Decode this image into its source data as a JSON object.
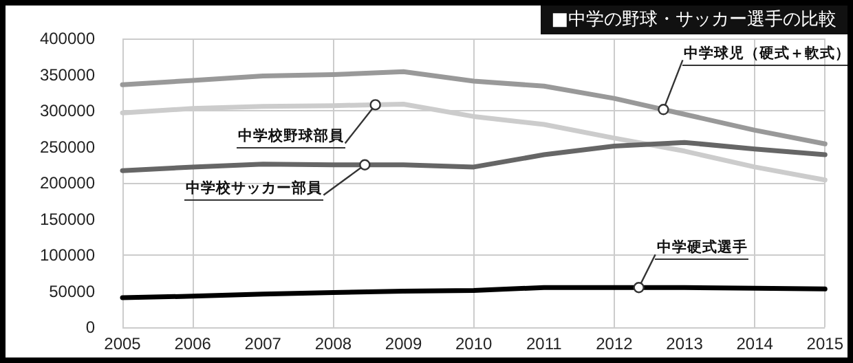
{
  "chart_data": {
    "type": "line",
    "title": "■中学の野球・サッカー選手の比較",
    "x": [
      2005,
      2006,
      2007,
      2008,
      2009,
      2010,
      2011,
      2012,
      2013,
      2014,
      2015
    ],
    "series": [
      {
        "name": "中学球児（硬式＋軟式）",
        "color": "#999999",
        "values": [
          336000,
          342000,
          348000,
          350000,
          354000,
          341000,
          334000,
          317000,
          295000,
          273000,
          254000
        ]
      },
      {
        "name": "中学校野球部員",
        "color": "#cccccc",
        "values": [
          297000,
          303000,
          306000,
          307000,
          309000,
          292000,
          281000,
          262000,
          244000,
          222000,
          204000
        ]
      },
      {
        "name": "中学校サッカー部員",
        "color": "#666666",
        "values": [
          217000,
          222000,
          226000,
          225000,
          225000,
          222000,
          239000,
          251000,
          256000,
          247000,
          239000
        ]
      },
      {
        "name": "中学硬式選手",
        "color": "#000000",
        "values": [
          41000,
          43000,
          46000,
          48000,
          50000,
          51000,
          55000,
          55000,
          55000,
          54000,
          53000
        ]
      }
    ],
    "xlim": [
      2005,
      2015
    ],
    "xticks": [
      2005,
      2006,
      2007,
      2008,
      2009,
      2010,
      2011,
      2012,
      2013,
      2014,
      2015
    ],
    "ylim": [
      0,
      400000
    ],
    "yticks": [
      0,
      50000,
      100000,
      150000,
      200000,
      250000,
      300000,
      350000,
      400000
    ],
    "grid": true,
    "marker": "none",
    "line_style": "solid"
  }
}
